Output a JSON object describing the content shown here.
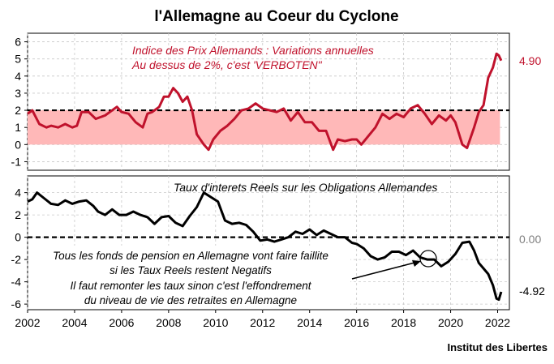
{
  "title": "l'Allemagne au Coeur du Cyclone",
  "source": "Institut des Libertes",
  "colors": {
    "inflation": "#c0122c",
    "band": "#ffb8b8",
    "real_rate": "#000000",
    "zero_label": "#808080"
  },
  "chart_data": [
    {
      "type": "line",
      "annotation": [
        "Indice des Prix Allemands : Variations annuelles",
        "Au dessus de 2%, c'est 'VERBOTEN\""
      ],
      "xlim": [
        2002,
        2022.5
      ],
      "ylim": [
        -1.5,
        6.5
      ],
      "yticks": [
        -1,
        0,
        1,
        2,
        3,
        4,
        5,
        6
      ],
      "reference_line": 2,
      "band": [
        0,
        2
      ],
      "grid": true,
      "end_label": "4.90",
      "series": [
        {
          "color": "#c0122c",
          "x": [
            2002.0,
            2002.2,
            2002.5,
            2002.8,
            2003.0,
            2003.3,
            2003.6,
            2003.9,
            2004.1,
            2004.3,
            2004.6,
            2004.9,
            2005.1,
            2005.3,
            2005.5,
            2005.8,
            2006.0,
            2006.3,
            2006.6,
            2006.9,
            2007.1,
            2007.3,
            2007.6,
            2007.8,
            2008.0,
            2008.2,
            2008.4,
            2008.6,
            2008.8,
            2009.0,
            2009.2,
            2009.5,
            2009.7,
            2009.9,
            2010.2,
            2010.5,
            2010.8,
            2011.1,
            2011.4,
            2011.7,
            2012.0,
            2012.3,
            2012.6,
            2012.9,
            2013.2,
            2013.5,
            2013.8,
            2014.1,
            2014.4,
            2014.7,
            2015.0,
            2015.2,
            2015.5,
            2015.8,
            2016.0,
            2016.2,
            2016.5,
            2016.8,
            2017.1,
            2017.4,
            2017.7,
            2018.0,
            2018.3,
            2018.6,
            2018.9,
            2019.2,
            2019.5,
            2019.8,
            2020.0,
            2020.2,
            2020.5,
            2020.7,
            2021.0,
            2021.2,
            2021.4,
            2021.6,
            2021.8,
            2021.95,
            2022.05,
            2022.15
          ],
          "values": [
            1.8,
            2.0,
            1.2,
            1.0,
            1.1,
            1.0,
            1.2,
            1.0,
            1.1,
            1.9,
            1.9,
            1.5,
            1.6,
            1.7,
            1.9,
            2.2,
            1.9,
            1.8,
            1.3,
            1.0,
            1.8,
            1.9,
            2.2,
            2.8,
            2.8,
            3.3,
            3.0,
            2.5,
            2.8,
            2.0,
            0.6,
            0.0,
            -0.3,
            0.3,
            0.8,
            1.1,
            1.5,
            2.0,
            2.1,
            2.4,
            2.1,
            2.0,
            1.9,
            2.1,
            1.4,
            1.9,
            1.3,
            1.3,
            0.8,
            0.8,
            -0.3,
            0.3,
            0.2,
            0.3,
            0.3,
            0.0,
            0.5,
            1.0,
            1.8,
            1.5,
            1.8,
            1.6,
            2.1,
            2.3,
            1.8,
            1.2,
            1.7,
            1.4,
            1.7,
            1.3,
            0.0,
            -0.2,
            1.0,
            1.9,
            2.3,
            3.9,
            4.5,
            5.3,
            5.2,
            4.9
          ]
        }
      ]
    },
    {
      "type": "line",
      "annotation": "Taux d'interets Reels sur les Obligations Allemandes",
      "note": [
        "Tous les fonds de pension en Allemagne vont faire faillite",
        "si les Taux Reels restent Negatifs",
        "Il faut remonter les taux sinon c'est l'effondrement",
        "du niveau de vie des retraites en Allemagne"
      ],
      "xlim": [
        2002,
        2022.5
      ],
      "ylim": [
        -6.5,
        5.5
      ],
      "yticks": [
        -6,
        -4,
        -2,
        0,
        2,
        4
      ],
      "xticks": [
        2002,
        2004,
        2006,
        2008,
        2010,
        2012,
        2014,
        2016,
        2018,
        2020,
        2022
      ],
      "reference_line": 0,
      "grid": true,
      "end_labels": [
        "0.00",
        "-4.92"
      ],
      "series": [
        {
          "color": "#000000",
          "x": [
            2002.0,
            2002.2,
            2002.4,
            2002.7,
            2003.0,
            2003.3,
            2003.6,
            2003.9,
            2004.2,
            2004.5,
            2004.8,
            2005.0,
            2005.3,
            2005.6,
            2005.9,
            2006.2,
            2006.5,
            2006.8,
            2007.1,
            2007.4,
            2007.7,
            2008.0,
            2008.3,
            2008.6,
            2008.9,
            2009.2,
            2009.5,
            2009.8,
            2010.1,
            2010.4,
            2010.7,
            2011.0,
            2011.3,
            2011.6,
            2011.9,
            2012.2,
            2012.5,
            2012.8,
            2013.1,
            2013.4,
            2013.7,
            2014.0,
            2014.3,
            2014.6,
            2014.9,
            2015.2,
            2015.5,
            2015.8,
            2016.0,
            2016.3,
            2016.6,
            2016.9,
            2017.2,
            2017.5,
            2017.8,
            2018.1,
            2018.4,
            2018.7,
            2019.0,
            2019.3,
            2019.6,
            2019.9,
            2020.2,
            2020.5,
            2020.8,
            2021.0,
            2021.2,
            2021.4,
            2021.6,
            2021.8,
            2021.95,
            2022.05,
            2022.15
          ],
          "values": [
            3.2,
            3.4,
            4.0,
            3.5,
            3.0,
            2.9,
            3.3,
            3.0,
            3.2,
            3.3,
            2.8,
            2.3,
            2.0,
            2.5,
            2.0,
            2.0,
            2.3,
            2.0,
            1.8,
            1.2,
            1.8,
            1.9,
            1.3,
            1.0,
            1.9,
            2.7,
            4.0,
            3.6,
            3.2,
            1.5,
            1.2,
            1.3,
            1.1,
            0.5,
            -0.3,
            -0.2,
            -0.4,
            -0.2,
            0.0,
            0.5,
            0.3,
            0.7,
            0.2,
            0.6,
            0.3,
            0.0,
            0.0,
            -0.5,
            -0.6,
            -1.0,
            -1.7,
            -2.0,
            -1.8,
            -1.3,
            -1.3,
            -1.6,
            -1.2,
            -1.8,
            -2.0,
            -2.0,
            -2.6,
            -2.2,
            -1.5,
            -0.5,
            -0.4,
            -1.2,
            -2.3,
            -2.8,
            -3.3,
            -4.3,
            -5.5,
            -5.6,
            -4.9
          ]
        }
      ]
    }
  ]
}
